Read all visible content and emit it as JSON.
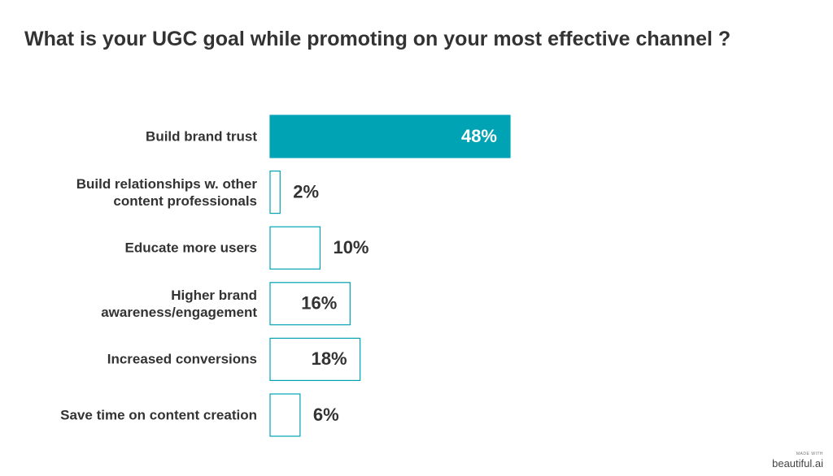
{
  "chart_data": {
    "type": "bar",
    "orientation": "horizontal",
    "title": "What is your UGC goal while promoting on your most effective channel ?",
    "categories": [
      "Build brand trust",
      "Build relationships w. other content professionals",
      "Educate more users",
      "Higher brand awareness/engagement",
      "Increased conversions",
      "Save time on content creation"
    ],
    "values": [
      48,
      2,
      10,
      16,
      18,
      6
    ],
    "value_labels": [
      "48%",
      "2%",
      "10%",
      "16%",
      "18%",
      "6%"
    ],
    "color": "#00a3b4",
    "fills": [
      "#00a3b4",
      "#ffffff",
      "#ffffff",
      "#ffffff",
      "#ffffff",
      "#ffffff"
    ]
  },
  "footer": {
    "made_with": "MADE WITH",
    "brand": "beautiful.ai"
  }
}
